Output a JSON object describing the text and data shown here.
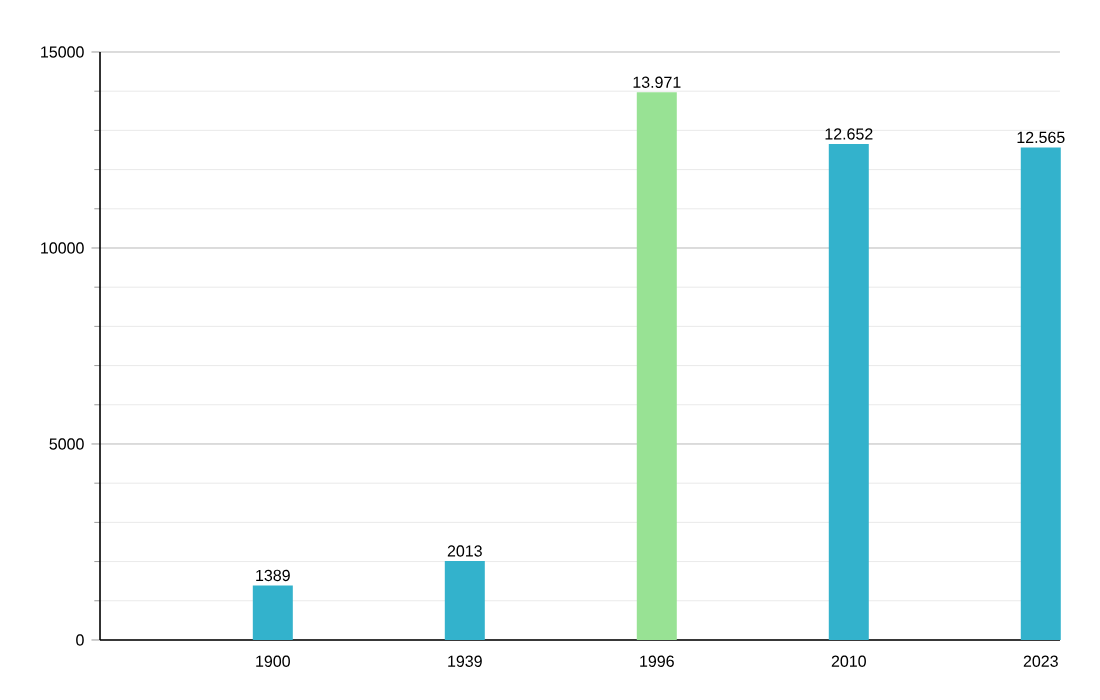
{
  "chart_data": {
    "type": "bar",
    "categories": [
      "1900",
      "1939",
      "1996",
      "2010",
      "2023"
    ],
    "values": [
      1389,
      2013,
      13971,
      12652,
      12565
    ],
    "colors": [
      "#33b2cc",
      "#33b2cc",
      "#98e294",
      "#33b2cc",
      "#33b2cc"
    ],
    "value_labels": [
      "1389",
      "2013",
      "13.971",
      "12.652",
      "12.565"
    ],
    "ylim": [
      0,
      15000
    ],
    "yticks": [
      0,
      5000,
      10000,
      15000
    ],
    "grid": "y"
  }
}
